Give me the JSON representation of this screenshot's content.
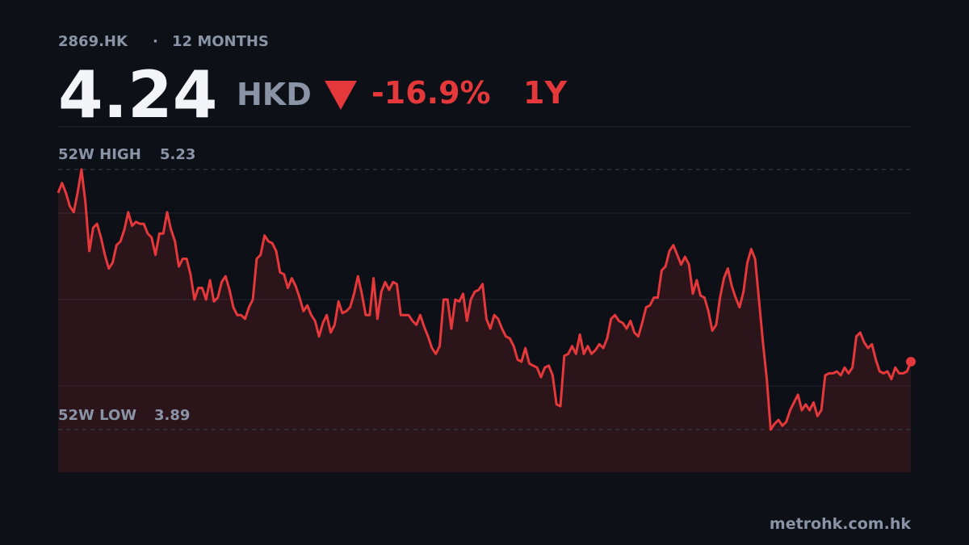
{
  "chart_data": {
    "type": "line",
    "ticker": "2869.HK",
    "period": "12 MONTHS",
    "price": 4.24,
    "currency": "HKD",
    "change": "-16.9%",
    "range": "1Y",
    "high_label": "52W HIGH",
    "high": 5.23,
    "low_label": "52W LOW",
    "low": 3.89,
    "source": "metrohk.com.hk",
    "color": "#e5383b",
    "ylim": [
      3.67,
      5.45
    ],
    "values": [
      5.11,
      5.16,
      5.11,
      5.04,
      5.01,
      5.11,
      5.23,
      5.06,
      4.81,
      4.93,
      4.95,
      4.88,
      4.79,
      4.72,
      4.75,
      4.84,
      4.86,
      4.92,
      5.01,
      4.94,
      4.96,
      4.95,
      4.95,
      4.9,
      4.88,
      4.79,
      4.9,
      4.9,
      5.01,
      4.92,
      4.86,
      4.73,
      4.77,
      4.77,
      4.69,
      4.56,
      4.62,
      4.62,
      4.56,
      4.66,
      4.55,
      4.57,
      4.65,
      4.68,
      4.61,
      4.52,
      4.48,
      4.48,
      4.46,
      4.52,
      4.56,
      4.77,
      4.79,
      4.89,
      4.86,
      4.85,
      4.81,
      4.7,
      4.69,
      4.62,
      4.67,
      4.63,
      4.57,
      4.5,
      4.53,
      4.48,
      4.45,
      4.37,
      4.44,
      4.48,
      4.39,
      4.43,
      4.55,
      4.49,
      4.5,
      4.52,
      4.59,
      4.68,
      4.59,
      4.48,
      4.48,
      4.67,
      4.46,
      4.6,
      4.65,
      4.61,
      4.65,
      4.64,
      4.48,
      4.48,
      4.48,
      4.45,
      4.43,
      4.48,
      4.42,
      4.37,
      4.31,
      4.28,
      4.32,
      4.56,
      4.56,
      4.41,
      4.56,
      4.55,
      4.59,
      4.45,
      4.56,
      4.6,
      4.61,
      4.64,
      4.46,
      4.41,
      4.48,
      4.46,
      4.41,
      4.37,
      4.36,
      4.32,
      4.25,
      4.24,
      4.31,
      4.23,
      4.22,
      4.21,
      4.16,
      4.21,
      4.22,
      4.17,
      4.02,
      4.01,
      4.27,
      4.28,
      4.32,
      4.28,
      4.38,
      4.28,
      4.32,
      4.28,
      4.3,
      4.33,
      4.31,
      4.36,
      4.46,
      4.48,
      4.45,
      4.44,
      4.41,
      4.45,
      4.39,
      4.37,
      4.44,
      4.52,
      4.53,
      4.57,
      4.57,
      4.71,
      4.73,
      4.81,
      4.84,
      4.79,
      4.74,
      4.78,
      4.74,
      4.59,
      4.66,
      4.58,
      4.57,
      4.5,
      4.4,
      4.43,
      4.57,
      4.67,
      4.72,
      4.63,
      4.57,
      4.52,
      4.6,
      4.75,
      4.82,
      4.77,
      4.56,
      4.34,
      4.15,
      3.89,
      3.92,
      3.94,
      3.91,
      3.93,
      3.99,
      4.03,
      4.07,
      3.99,
      4.02,
      3.99,
      4.03,
      3.96,
      3.99,
      4.17,
      4.18,
      4.18,
      4.19,
      4.17,
      4.21,
      4.18,
      4.21,
      4.37,
      4.39,
      4.34,
      4.31,
      4.33,
      4.25,
      4.19,
      4.18,
      4.19,
      4.15,
      4.21,
      4.18,
      4.18,
      4.19,
      4.24
    ]
  }
}
